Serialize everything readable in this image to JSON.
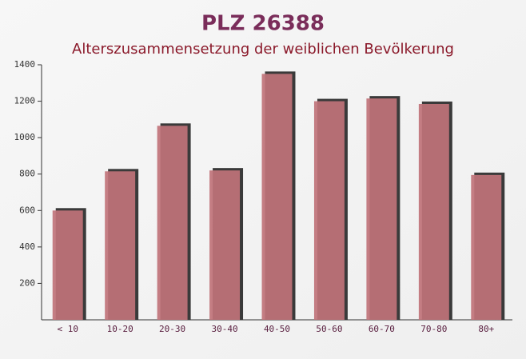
{
  "chart_data": {
    "type": "bar",
    "title": "PLZ 26388",
    "subtitle": "Alterszusammensetzung der weiblichen Bevölkerung",
    "categories": [
      "< 10",
      "10-20",
      "20-30",
      "30-40",
      "40-50",
      "50-60",
      "60-70",
      "70-80",
      "80+"
    ],
    "values": [
      600,
      815,
      1065,
      820,
      1350,
      1200,
      1215,
      1185,
      795
    ],
    "color": "#c0737a",
    "ylim": [
      0,
      1400
    ],
    "yticks": [
      200,
      400,
      600,
      800,
      1000,
      1200,
      1400
    ]
  }
}
